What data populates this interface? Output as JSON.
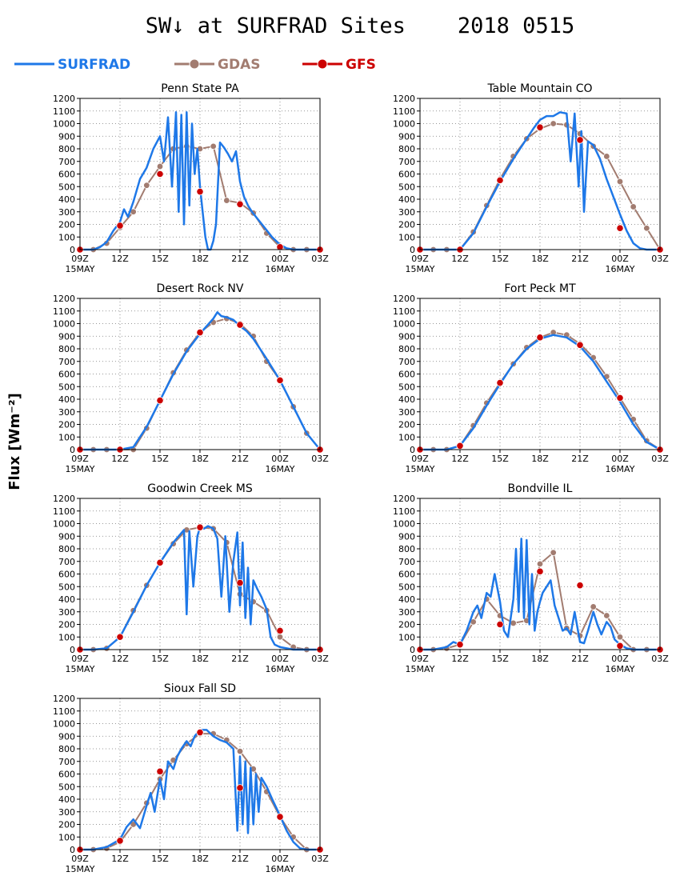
{
  "page": {
    "title": "SW↓ at SURFRAD Sites    2018 0515",
    "ylabel": "Flux [Wm⁻²]"
  },
  "legend": [
    {
      "name": "SURFRAD",
      "color": "#1e78e8",
      "marker": "none"
    },
    {
      "name": "GDAS",
      "color": "#a27c70",
      "marker": "circle"
    },
    {
      "name": "GFS",
      "color": "#cc0000",
      "marker": "dot"
    }
  ],
  "axes": {
    "x_ticks": [
      "09Z",
      "12Z",
      "15Z",
      "18Z",
      "21Z",
      "00Z",
      "03Z"
    ],
    "x_sublabels": [
      {
        "at": "09Z",
        "text": "15MAY"
      },
      {
        "at": "00Z",
        "text": "16MAY"
      }
    ],
    "xlim_hours": [
      9,
      27
    ],
    "ylim": [
      0,
      1200
    ],
    "y_ticks": [
      0,
      100,
      200,
      300,
      400,
      500,
      600,
      700,
      800,
      900,
      1000,
      1100,
      1200
    ],
    "grid": "dotted"
  },
  "chart_data": [
    {
      "type": "line",
      "title": "Penn State PA",
      "series": [
        {
          "name": "SURFRAD",
          "x": [
            9,
            10,
            10.5,
            11,
            11.5,
            12,
            12.3,
            12.6,
            13,
            13.5,
            14,
            14.5,
            15,
            15.3,
            15.6,
            15.9,
            16.2,
            16.4,
            16.6,
            16.8,
            17,
            17.2,
            17.4,
            17.6,
            17.8,
            18,
            18.2,
            18.4,
            18.6,
            18.8,
            19,
            19.2,
            19.5,
            19.8,
            20.1,
            20.4,
            20.7,
            21,
            21.3,
            21.6,
            21.9,
            22.2,
            22.5,
            22.8,
            23.1,
            23.4,
            23.7,
            24,
            24.5,
            25,
            27
          ],
          "y": [
            0,
            0,
            20,
            60,
            150,
            220,
            320,
            260,
            380,
            560,
            650,
            800,
            900,
            700,
            1050,
            500,
            1090,
            300,
            1070,
            200,
            1090,
            350,
            1000,
            600,
            800,
            500,
            300,
            100,
            0,
            0,
            70,
            200,
            850,
            810,
            760,
            700,
            780,
            540,
            420,
            350,
            300,
            260,
            220,
            180,
            140,
            100,
            70,
            40,
            10,
            0,
            0
          ]
        },
        {
          "name": "GDAS",
          "x": [
            9,
            10,
            11,
            12,
            13,
            14,
            15,
            16,
            17,
            18,
            19,
            20,
            21,
            22,
            23,
            24,
            25,
            26,
            27
          ],
          "y": [
            0,
            0,
            50,
            175,
            300,
            510,
            660,
            800,
            820,
            800,
            820,
            390,
            370,
            290,
            130,
            20,
            0,
            0,
            0
          ]
        },
        {
          "name": "GFS",
          "x": [
            9,
            12,
            15,
            18,
            21,
            24,
            27
          ],
          "y": [
            0,
            190,
            600,
            460,
            360,
            20,
            0
          ]
        }
      ]
    },
    {
      "type": "line",
      "title": "Table Mountain CO",
      "series": [
        {
          "name": "SURFRAD",
          "x": [
            9,
            10,
            11,
            12,
            13,
            14,
            15,
            16,
            17,
            17.5,
            18,
            18.5,
            19,
            19.5,
            20,
            20.3,
            20.6,
            20.9,
            21.1,
            21.3,
            21.6,
            22,
            22.5,
            23,
            23.5,
            24,
            24.5,
            25,
            25.5,
            26,
            27
          ],
          "y": [
            0,
            0,
            0,
            0,
            130,
            340,
            540,
            720,
            880,
            960,
            1030,
            1060,
            1060,
            1090,
            1080,
            700,
            1080,
            500,
            940,
            300,
            860,
            830,
            720,
            560,
            420,
            280,
            150,
            50,
            10,
            0,
            0
          ]
        },
        {
          "name": "GDAS",
          "x": [
            9,
            10,
            11,
            12,
            13,
            14,
            15,
            16,
            17,
            18,
            19,
            20,
            21,
            22,
            23,
            24,
            25,
            26,
            27
          ],
          "y": [
            0,
            0,
            0,
            0,
            140,
            350,
            560,
            740,
            880,
            960,
            1000,
            990,
            920,
            820,
            740,
            540,
            340,
            170,
            0
          ]
        },
        {
          "name": "GFS",
          "x": [
            9,
            12,
            15,
            18,
            21,
            24,
            27
          ],
          "y": [
            0,
            0,
            550,
            970,
            870,
            170,
            0
          ]
        }
      ]
    },
    {
      "type": "line",
      "title": "Desert Rock NV",
      "series": [
        {
          "name": "SURFRAD",
          "x": [
            9,
            10,
            11,
            12,
            13,
            14,
            15,
            16,
            17,
            18,
            19,
            19.3,
            19.6,
            20,
            20.5,
            21,
            21.5,
            22,
            23,
            24,
            25,
            26,
            27
          ],
          "y": [
            0,
            0,
            0,
            0,
            20,
            180,
            390,
            600,
            780,
            920,
            1040,
            1090,
            1060,
            1050,
            1030,
            980,
            940,
            880,
            720,
            550,
            340,
            130,
            0
          ]
        },
        {
          "name": "GDAS",
          "x": [
            9,
            10,
            11,
            12,
            13,
            14,
            15,
            16,
            17,
            18,
            19,
            20,
            21,
            22,
            23,
            24,
            25,
            26,
            27
          ],
          "y": [
            0,
            0,
            0,
            0,
            0,
            170,
            390,
            610,
            790,
            930,
            1010,
            1040,
            1000,
            900,
            700,
            550,
            340,
            130,
            0
          ]
        },
        {
          "name": "GFS",
          "x": [
            9,
            12,
            15,
            18,
            21,
            24,
            27
          ],
          "y": [
            0,
            0,
            390,
            930,
            990,
            550,
            0
          ]
        }
      ]
    },
    {
      "type": "line",
      "title": "Fort Peck MT",
      "series": [
        {
          "name": "SURFRAD",
          "x": [
            9,
            10,
            11,
            12,
            13,
            14,
            15,
            16,
            17,
            18,
            19,
            20,
            21,
            22,
            23,
            24,
            25,
            26,
            27
          ],
          "y": [
            0,
            0,
            0,
            30,
            170,
            350,
            520,
            680,
            800,
            880,
            910,
            890,
            820,
            700,
            540,
            380,
            200,
            60,
            0
          ]
        },
        {
          "name": "GDAS",
          "x": [
            9,
            10,
            11,
            12,
            13,
            14,
            15,
            16,
            17,
            18,
            19,
            20,
            21,
            22,
            23,
            24,
            25,
            26,
            27
          ],
          "y": [
            0,
            0,
            0,
            30,
            190,
            370,
            530,
            680,
            810,
            890,
            930,
            910,
            840,
            730,
            580,
            410,
            240,
            70,
            0
          ]
        },
        {
          "name": "GFS",
          "x": [
            9,
            12,
            15,
            18,
            21,
            24,
            27
          ],
          "y": [
            0,
            30,
            530,
            890,
            830,
            410,
            0
          ]
        }
      ]
    },
    {
      "type": "line",
      "title": "Goodwin Creek MS",
      "series": [
        {
          "name": "SURFRAD",
          "x": [
            9,
            10,
            11,
            12,
            13,
            14,
            15,
            16,
            16.8,
            17,
            17.2,
            17.5,
            17.8,
            18,
            18.3,
            18.6,
            19,
            19.3,
            19.6,
            19.9,
            20.2,
            20.5,
            20.8,
            21,
            21.2,
            21.4,
            21.6,
            21.8,
            22,
            22.3,
            22.6,
            23,
            23.3,
            23.6,
            24,
            24.5,
            25,
            27
          ],
          "y": [
            0,
            0,
            10,
            100,
            300,
            510,
            690,
            850,
            950,
            280,
            940,
            500,
            900,
            970,
            960,
            980,
            960,
            880,
            420,
            900,
            300,
            700,
            930,
            350,
            850,
            250,
            650,
            200,
            550,
            480,
            420,
            320,
            100,
            40,
            20,
            10,
            0,
            0
          ]
        },
        {
          "name": "GDAS",
          "x": [
            9,
            10,
            11,
            12,
            13,
            14,
            15,
            16,
            17,
            18,
            19,
            20,
            21,
            22,
            23,
            24,
            25,
            26,
            27
          ],
          "y": [
            0,
            0,
            10,
            100,
            310,
            510,
            690,
            840,
            950,
            970,
            960,
            850,
            440,
            380,
            310,
            100,
            20,
            0,
            0
          ]
        },
        {
          "name": "GFS",
          "x": [
            9,
            12,
            15,
            18,
            21,
            24,
            27
          ],
          "y": [
            0,
            100,
            690,
            970,
            530,
            150,
            0
          ]
        }
      ]
    },
    {
      "type": "line",
      "title": "Bondville IL",
      "series": [
        {
          "name": "SURFRAD",
          "x": [
            9,
            10,
            11,
            11.5,
            12,
            12.5,
            13,
            13.3,
            13.6,
            14,
            14.3,
            14.6,
            15,
            15.3,
            15.6,
            16,
            16.2,
            16.4,
            16.6,
            16.8,
            17,
            17.2,
            17.4,
            17.6,
            17.8,
            18,
            18.2,
            18.5,
            18.8,
            19.1,
            19.4,
            19.7,
            20,
            20.3,
            20.6,
            21,
            21.3,
            21.6,
            22,
            22.3,
            22.6,
            23,
            23.3,
            23.6,
            24,
            24.5,
            25,
            25.5,
            27
          ],
          "y": [
            0,
            0,
            20,
            60,
            40,
            150,
            300,
            350,
            250,
            450,
            420,
            600,
            380,
            150,
            100,
            400,
            800,
            300,
            880,
            250,
            870,
            200,
            600,
            150,
            300,
            380,
            450,
            500,
            550,
            350,
            250,
            150,
            170,
            120,
            300,
            60,
            50,
            150,
            300,
            200,
            120,
            220,
            180,
            80,
            40,
            10,
            0,
            0,
            0
          ]
        },
        {
          "name": "GDAS",
          "x": [
            9,
            10,
            11,
            12,
            13,
            14,
            15,
            16,
            17,
            18,
            19,
            20,
            21,
            22,
            23,
            24,
            25,
            26,
            27
          ],
          "y": [
            0,
            0,
            10,
            40,
            220,
            400,
            270,
            210,
            230,
            680,
            770,
            170,
            110,
            340,
            270,
            100,
            0,
            0,
            0
          ]
        },
        {
          "name": "GFS",
          "x": [
            9,
            12,
            15,
            18,
            21,
            24,
            27
          ],
          "y": [
            0,
            40,
            200,
            620,
            510,
            30,
            0
          ]
        }
      ]
    },
    {
      "type": "line",
      "title": "Sioux Fall SD",
      "series": [
        {
          "name": "SURFRAD",
          "x": [
            9,
            10,
            11,
            12,
            12.5,
            13,
            13.5,
            14,
            14.3,
            14.6,
            15,
            15.3,
            15.6,
            16,
            16.3,
            16.6,
            17,
            17.3,
            17.6,
            18,
            18.5,
            19,
            19.5,
            20,
            20.5,
            20.8,
            21,
            21.2,
            21.4,
            21.6,
            21.8,
            22,
            22.2,
            22.4,
            22.6,
            23,
            23.5,
            24,
            24.5,
            25,
            25.5,
            26,
            27
          ],
          "y": [
            0,
            0,
            20,
            80,
            180,
            240,
            170,
            350,
            450,
            300,
            560,
            400,
            700,
            640,
            740,
            800,
            860,
            820,
            900,
            950,
            950,
            900,
            870,
            850,
            800,
            150,
            740,
            200,
            700,
            130,
            650,
            200,
            600,
            300,
            570,
            500,
            380,
            270,
            150,
            60,
            10,
            0,
            0
          ]
        },
        {
          "name": "GDAS",
          "x": [
            9,
            10,
            11,
            12,
            13,
            14,
            15,
            16,
            17,
            18,
            19,
            20,
            21,
            22,
            23,
            24,
            25,
            26,
            27
          ],
          "y": [
            0,
            0,
            10,
            60,
            200,
            370,
            560,
            710,
            840,
            920,
            920,
            870,
            780,
            640,
            460,
            260,
            100,
            0,
            0
          ]
        },
        {
          "name": "GFS",
          "x": [
            9,
            12,
            15,
            18,
            21,
            24,
            27
          ],
          "y": [
            0,
            70,
            620,
            930,
            490,
            260,
            0
          ]
        }
      ]
    }
  ]
}
